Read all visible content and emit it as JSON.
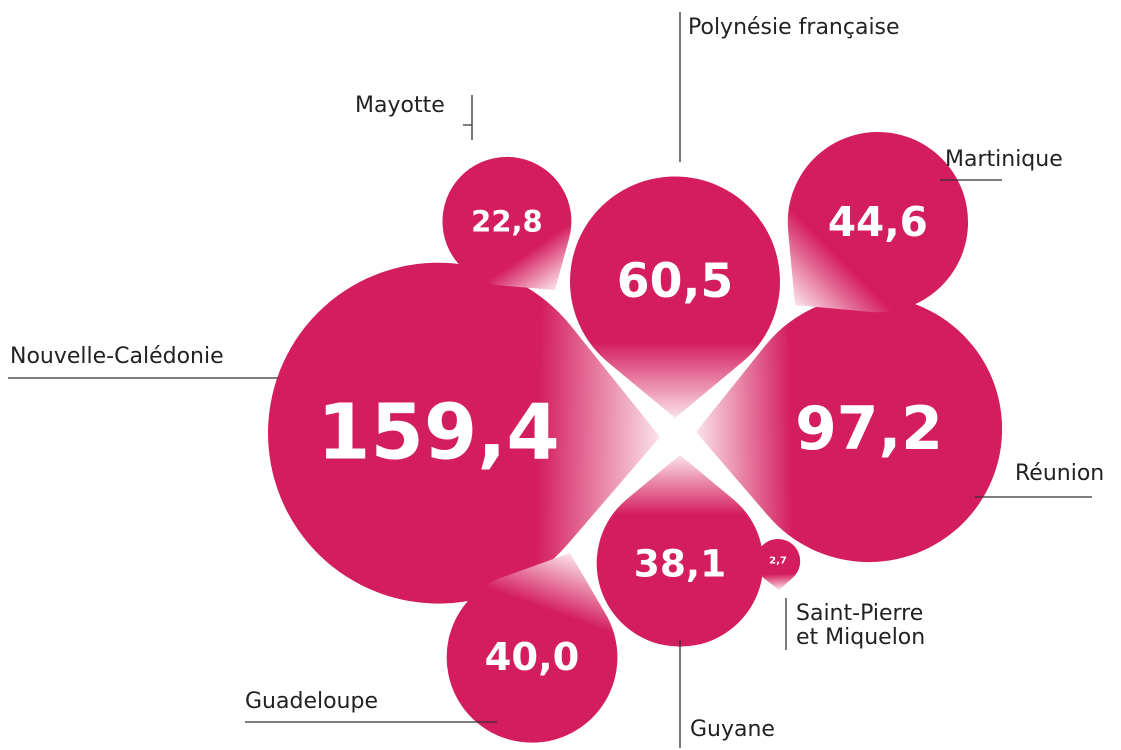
{
  "chart_data": {
    "type": "teardrop",
    "color": "#d41d5e",
    "categories": [
      "Nouvelle-Calédonie",
      "Réunion",
      "Polynésie française",
      "Martinique",
      "Guadeloupe",
      "Guyane",
      "Mayotte",
      "Saint-Pierre et Miquelon"
    ],
    "values": [
      159.4,
      97.2,
      60.5,
      44.6,
      40.0,
      38.1,
      22.8,
      2.7
    ],
    "value_labels": [
      "159,4",
      "97,2",
      "60,5",
      "44,6",
      "40,0",
      "38,1",
      "22,8",
      "2,7"
    ]
  }
}
